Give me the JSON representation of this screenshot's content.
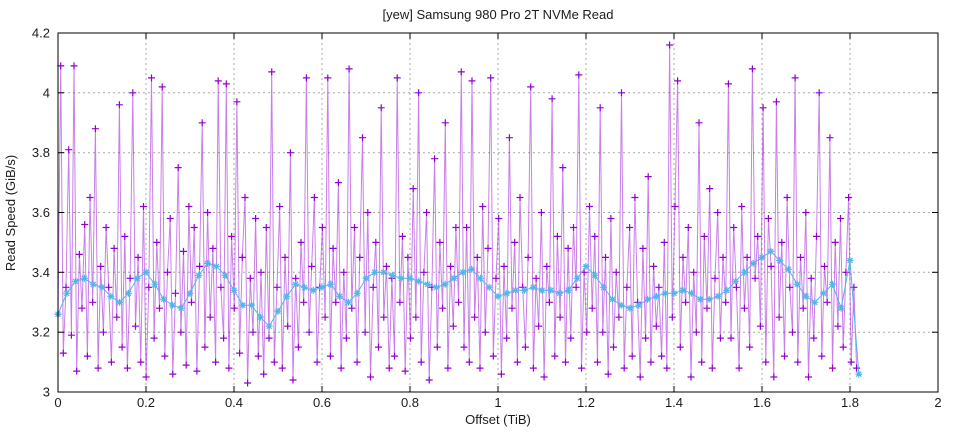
{
  "page": {
    "background": "#ffffff"
  },
  "chart_data": {
    "type": "line",
    "title": "[yew] Samsung 980 Pro 2T NVMe Read",
    "xlabel": "Offset (TiB)",
    "ylabel": "Read Speed (GiB/s)",
    "xlim": [
      0,
      2
    ],
    "ylim": [
      3,
      4.2
    ],
    "x_ticks": [
      0,
      0.2,
      0.4,
      0.6,
      0.8,
      1,
      1.2,
      1.4,
      1.6,
      1.8,
      2
    ],
    "x_tick_labels": [
      "0",
      "0.2",
      "0.4",
      "0.6",
      "0.8",
      "1",
      "1.2",
      "1.4",
      "1.6",
      "1.8",
      "2"
    ],
    "y_ticks": [
      3,
      3.2,
      3.4,
      3.6,
      3.8,
      4,
      4.2
    ],
    "y_tick_labels": [
      "3",
      "3.2",
      "3.4",
      "3.6",
      "3.8",
      "4",
      "4.2"
    ],
    "grid": true,
    "grid_color": "#a8a8a8",
    "border_color": "#000000",
    "legend": "none",
    "series": [
      {
        "name": "read-speed-raw",
        "marker": "plus",
        "color": "#9400d3",
        "line_opacity": 0.5,
        "x_start": 0,
        "x_step": 0.00607,
        "values": [
          3.26,
          4.09,
          3.13,
          3.35,
          3.81,
          3.19,
          4.09,
          3.07,
          3.46,
          3.28,
          3.56,
          3.12,
          3.65,
          3.3,
          3.88,
          3.08,
          3.42,
          3.2,
          3.55,
          3.35,
          3.1,
          3.48,
          3.25,
          3.96,
          3.15,
          3.52,
          3.08,
          3.38,
          4.0,
          3.22,
          3.45,
          3.1,
          3.62,
          3.05,
          3.35,
          4.05,
          3.18,
          3.5,
          3.28,
          4.02,
          3.12,
          3.4,
          3.58,
          3.06,
          3.33,
          3.75,
          3.2,
          3.47,
          3.09,
          3.62,
          3.3,
          3.55,
          3.07,
          3.42,
          3.9,
          3.15,
          3.6,
          3.25,
          3.48,
          3.1,
          4.04,
          3.35,
          3.18,
          4.03,
          3.08,
          3.52,
          3.28,
          3.97,
          3.13,
          3.45,
          3.65,
          3.03,
          3.38,
          3.2,
          3.58,
          3.12,
          3.4,
          3.06,
          3.55,
          3.18,
          4.07,
          3.1,
          3.35,
          3.62,
          3.08,
          3.45,
          3.22,
          3.8,
          3.04,
          3.38,
          3.15,
          3.5,
          3.3,
          4.05,
          3.2,
          3.42,
          3.65,
          3.1,
          3.35,
          3.55,
          3.25,
          4.05,
          3.12,
          3.48,
          3.3,
          3.7,
          3.08,
          3.4,
          3.18,
          4.08,
          3.28,
          3.55,
          3.1,
          3.45,
          3.85,
          3.2,
          3.6,
          3.05,
          3.35,
          3.5,
          3.15,
          3.95,
          3.25,
          3.42,
          3.08,
          3.38,
          3.12,
          4.05,
          3.3,
          3.52,
          3.07,
          3.45,
          3.18,
          3.68,
          3.25,
          4.0,
          3.1,
          3.4,
          3.6,
          3.04,
          3.35,
          3.78,
          3.15,
          3.5,
          3.28,
          3.9,
          3.08,
          3.42,
          3.22,
          3.55,
          3.3,
          4.07,
          3.15,
          3.55,
          3.1,
          4.04,
          3.25,
          3.45,
          3.08,
          3.62,
          3.2,
          3.48,
          4.05,
          3.12,
          3.38,
          3.58,
          3.06,
          3.42,
          3.18,
          3.85,
          3.28,
          3.5,
          3.1,
          3.65,
          3.35,
          3.15,
          3.45,
          4.02,
          3.08,
          3.38,
          3.22,
          3.6,
          3.05,
          3.42,
          3.3,
          3.98,
          3.12,
          3.52,
          3.25,
          3.75,
          3.1,
          3.48,
          3.18,
          3.55,
          3.35,
          4.06,
          3.08,
          3.4,
          3.2,
          3.62,
          3.28,
          3.52,
          3.1,
          3.95,
          3.2,
          3.45,
          3.06,
          3.58,
          3.15,
          3.4,
          3.25,
          4.0,
          3.08,
          3.35,
          3.55,
          3.12,
          3.65,
          3.3,
          3.05,
          3.48,
          3.18,
          3.72,
          3.1,
          3.42,
          3.22,
          3.35,
          3.12,
          3.5,
          3.08,
          4.16,
          3.25,
          3.62,
          4.04,
          3.15,
          3.45,
          3.3,
          3.55,
          3.05,
          3.4,
          3.2,
          3.9,
          3.1,
          3.52,
          3.28,
          3.68,
          3.08,
          3.38,
          3.6,
          3.18,
          3.45,
          3.3,
          4.03,
          3.18,
          3.55,
          3.35,
          3.08,
          3.62,
          3.28,
          3.45,
          3.15,
          4.08,
          3.38,
          3.52,
          3.22,
          3.95,
          3.1,
          3.58,
          3.42,
          3.05,
          3.97,
          3.25,
          3.5,
          3.12,
          3.65,
          3.35,
          3.2,
          4.05,
          3.1,
          3.45,
          3.28,
          3.6,
          3.05,
          3.38,
          3.18,
          3.52,
          4.0,
          3.12,
          3.42,
          3.3,
          3.85,
          3.08,
          3.5,
          3.22,
          3.58,
          3.15,
          3.4,
          3.65,
          3.1,
          3.35,
          3.08
        ]
      },
      {
        "name": "read-speed-smoothed",
        "marker": "asterisk",
        "color": "#56b4e9",
        "line_opacity": 1,
        "x_start": 0,
        "x_step": 0.02,
        "values": [
          3.26,
          3.33,
          3.37,
          3.38,
          3.36,
          3.35,
          3.32,
          3.3,
          3.33,
          3.38,
          3.4,
          3.36,
          3.31,
          3.29,
          3.28,
          3.33,
          3.39,
          3.43,
          3.42,
          3.39,
          3.34,
          3.29,
          3.29,
          3.25,
          3.22,
          3.27,
          3.32,
          3.36,
          3.35,
          3.34,
          3.35,
          3.36,
          3.32,
          3.3,
          3.33,
          3.38,
          3.4,
          3.4,
          3.39,
          3.38,
          3.38,
          3.37,
          3.36,
          3.35,
          3.36,
          3.38,
          3.4,
          3.41,
          3.38,
          3.35,
          3.32,
          3.33,
          3.34,
          3.34,
          3.35,
          3.34,
          3.34,
          3.33,
          3.34,
          3.38,
          3.42,
          3.39,
          3.35,
          3.31,
          3.29,
          3.28,
          3.29,
          3.31,
          3.32,
          3.33,
          3.33,
          3.34,
          3.33,
          3.31,
          3.31,
          3.32,
          3.34,
          3.37,
          3.4,
          3.43,
          3.45,
          3.47,
          3.44,
          3.41,
          3.36,
          3.32,
          3.3,
          3.33,
          3.36,
          3.28,
          3.44,
          3.06
        ]
      }
    ]
  }
}
